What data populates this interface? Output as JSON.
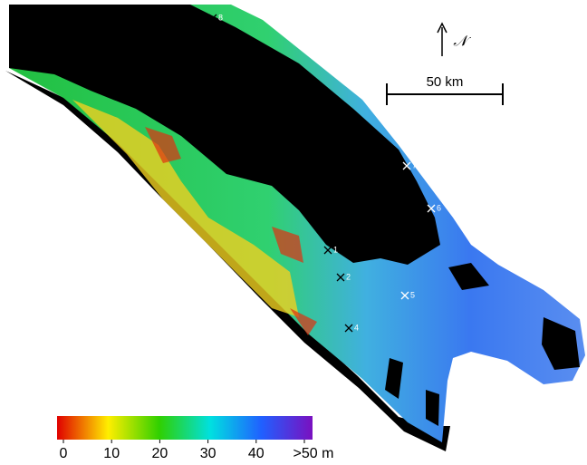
{
  "scale_bar": {
    "label": "50 km"
  },
  "north_arrow": {
    "label": "𝒩"
  },
  "colorbar": {
    "lim": [
      0,
      50
    ],
    "ticks": [
      0,
      10,
      20,
      30,
      40,
      {
        "value": 50,
        "label": ">50 m"
      }
    ]
  },
  "stations": [
    "1",
    "2",
    "4",
    "5",
    "6",
    "7",
    "8"
  ]
}
